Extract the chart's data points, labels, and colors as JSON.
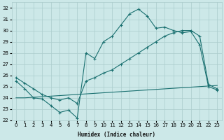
{
  "xlabel": "Humidex (Indice chaleur)",
  "bg_color": "#cce8e8",
  "grid_color": "#aacccc",
  "line_color": "#1a7070",
  "xlim": [
    -0.5,
    23.5
  ],
  "ylim": [
    22,
    32.5
  ],
  "xticks": [
    0,
    1,
    2,
    3,
    4,
    5,
    6,
    7,
    8,
    9,
    10,
    11,
    12,
    13,
    14,
    15,
    16,
    17,
    18,
    19,
    20,
    21,
    22,
    23
  ],
  "yticks": [
    22,
    23,
    24,
    25,
    26,
    27,
    28,
    29,
    30,
    31,
    32
  ],
  "line1_x": [
    0,
    1,
    2,
    3,
    4,
    5,
    6,
    7,
    8,
    9,
    10,
    11,
    12,
    13,
    14,
    15,
    16,
    17,
    18,
    19,
    20,
    21,
    22,
    23
  ],
  "line1_y": [
    25.8,
    25.3,
    24.8,
    24.3,
    24.0,
    23.8,
    24.0,
    23.5,
    25.5,
    25.8,
    26.2,
    26.5,
    27.0,
    27.5,
    28.0,
    28.5,
    29.0,
    29.5,
    29.8,
    30.0,
    30.0,
    29.5,
    25.2,
    24.8
  ],
  "line2_x": [
    0,
    1,
    2,
    3,
    4,
    5,
    6,
    7,
    8,
    9,
    10,
    11,
    12,
    13,
    14,
    15,
    16,
    17,
    18,
    19,
    20,
    21,
    22,
    23
  ],
  "line2_y": [
    25.5,
    24.8,
    24.0,
    23.9,
    23.3,
    22.7,
    22.9,
    22.2,
    28.0,
    27.5,
    29.0,
    29.5,
    30.5,
    31.5,
    31.9,
    31.3,
    30.2,
    30.3,
    30.0,
    29.8,
    29.9,
    28.7,
    25.0,
    24.7
  ],
  "line3_x": [
    0,
    1,
    2,
    3,
    4,
    5,
    6,
    7,
    8,
    9,
    10,
    11,
    12,
    13,
    14,
    15,
    16,
    17,
    18,
    19,
    20,
    21,
    22,
    23
  ],
  "line3_y": [
    24.0,
    24.0,
    24.05,
    24.1,
    24.15,
    24.2,
    24.25,
    24.3,
    24.35,
    24.4,
    24.45,
    24.5,
    24.55,
    24.6,
    24.65,
    24.7,
    24.75,
    24.8,
    24.85,
    24.9,
    24.95,
    25.0,
    25.05,
    25.1
  ]
}
